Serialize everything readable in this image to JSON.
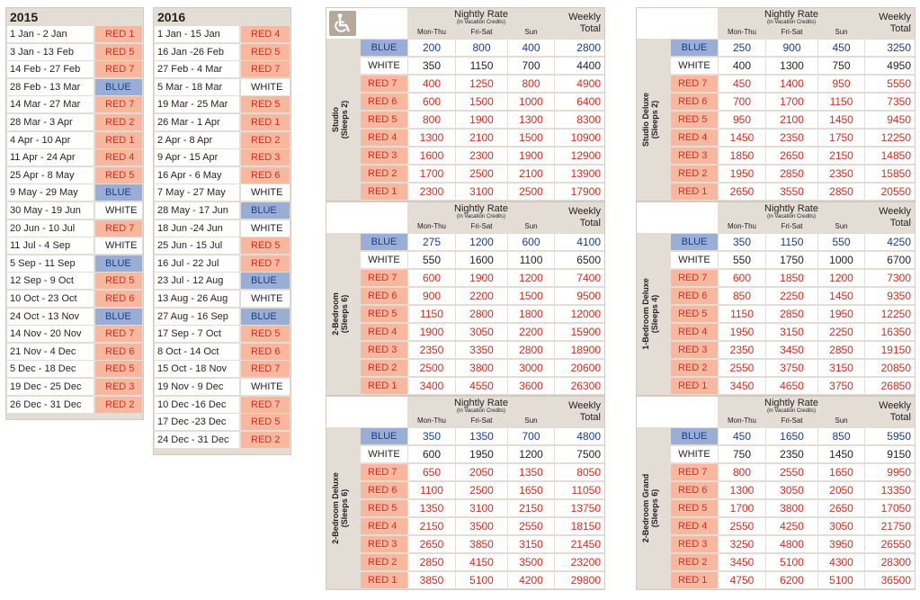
{
  "colors": {
    "frame": "#e3ddd5",
    "blue": "#9aaed3",
    "red": "#f6b9a0",
    "white": "#ffffff",
    "blue_text": "#1a3c8c",
    "red_text": "#d22e21",
    "icon_bg": "#b5a99b"
  },
  "calendars": [
    {
      "year": "2015",
      "rows": [
        {
          "date": "1 Jan - 2 Jan",
          "season": "RED 1"
        },
        {
          "date": "3 Jan - 13 Feb",
          "season": "RED 5"
        },
        {
          "date": "14 Feb - 27 Feb",
          "season": "RED 7"
        },
        {
          "date": "28 Feb - 13 Mar",
          "season": "BLUE"
        },
        {
          "date": "14 Mar - 27 Mar",
          "season": "RED 7"
        },
        {
          "date": "28 Mar - 3 Apr",
          "season": "RED 2"
        },
        {
          "date": "4 Apr - 10 Apr",
          "season": "RED 1"
        },
        {
          "date": "11 Apr - 24 Apr",
          "season": "RED 4"
        },
        {
          "date": "25 Apr - 8 May",
          "season": "RED 5"
        },
        {
          "date": "9 May - 29 May",
          "season": "BLUE"
        },
        {
          "date": "30 May - 19 Jun",
          "season": "WHITE"
        },
        {
          "date": "20 Jun - 10 Jul",
          "season": "RED 7"
        },
        {
          "date": "11 Jul - 4 Sep",
          "season": "WHITE"
        },
        {
          "date": "5 Sep - 11 Sep",
          "season": "BLUE"
        },
        {
          "date": "12 Sep - 9 Oct",
          "season": "RED 5"
        },
        {
          "date": "10 Oct - 23 Oct",
          "season": "RED 6"
        },
        {
          "date": "24 Oct - 13 Nov",
          "season": "BLUE"
        },
        {
          "date": "14 Nov - 20 Nov",
          "season": "RED 7"
        },
        {
          "date": "21 Nov - 4 Dec",
          "season": "RED 6"
        },
        {
          "date": "5 Dec - 18 Dec",
          "season": "RED 5"
        },
        {
          "date": "19 Dec - 25 Dec",
          "season": "RED 3"
        },
        {
          "date": "26 Dec - 31 Dec",
          "season": "RED 2"
        }
      ]
    },
    {
      "year": "2016",
      "rows": [
        {
          "date": "1 Jan - 15 Jan",
          "season": "RED 4"
        },
        {
          "date": "16 Jan -26 Feb",
          "season": "RED 5"
        },
        {
          "date": "27 Feb - 4 Mar",
          "season": "RED 7"
        },
        {
          "date": "5 Mar - 18 Mar",
          "season": "WHITE"
        },
        {
          "date": "19 Mar - 25 Mar",
          "season": "RED 5"
        },
        {
          "date": "26 Mar - 1 Apr",
          "season": "RED 1"
        },
        {
          "date": "2 Apr - 8 Apr",
          "season": "RED 2"
        },
        {
          "date": "9 Apr - 15 Apr",
          "season": "RED 3"
        },
        {
          "date": "16 Apr - 6 May",
          "season": "RED 6"
        },
        {
          "date": "7 May - 27 May",
          "season": "WHITE"
        },
        {
          "date": "28 May - 17 Jun",
          "season": "BLUE"
        },
        {
          "date": "18 Jun -24 Jun",
          "season": "WHITE"
        },
        {
          "date": "25 Jun - 15 Jul",
          "season": "RED 5"
        },
        {
          "date": "16 Jul - 22 Jul",
          "season": "RED 7"
        },
        {
          "date": "23 Jul - 12 Aug",
          "season": "BLUE"
        },
        {
          "date": "13 Aug - 26 Aug",
          "season": "WHITE"
        },
        {
          "date": "27 Aug - 16 Sep",
          "season": "BLUE"
        },
        {
          "date": "17 Sep - 7 Oct",
          "season": "RED 5"
        },
        {
          "date": "8 Oct - 14 Oct",
          "season": "RED 6"
        },
        {
          "date": "15 Oct - 18 Nov",
          "season": "RED 7"
        },
        {
          "date": "19 Nov - 9 Dec",
          "season": "WHITE"
        },
        {
          "date": "10 Dec -16 Dec",
          "season": "RED 7"
        },
        {
          "date": "17 Dec -23 Dec",
          "season": "RED 5"
        },
        {
          "date": "24 Dec - 31 Dec",
          "season": "RED 2"
        }
      ]
    }
  ],
  "rate_header": {
    "nightly_rate": "Nightly Rate",
    "subtitle": "(in Vacation Credits)",
    "columns": [
      "Mon-Thu",
      "Fri-Sat",
      "Sun"
    ],
    "weekly_line1": "Weekly",
    "weekly_line2": "Total"
  },
  "accessibility_icon": "wheelchair-icon",
  "rate_tables": [
    {
      "unit_name": "Studio",
      "unit_sleeps": "(Sleeps 2)",
      "rows": [
        {
          "season": "BLUE",
          "mon_thu": "200",
          "fri_sat": "800",
          "sun": "400",
          "weekly": "2800"
        },
        {
          "season": "WHITE",
          "mon_thu": "350",
          "fri_sat": "1150",
          "sun": "700",
          "weekly": "4400"
        },
        {
          "season": "RED 7",
          "mon_thu": "400",
          "fri_sat": "1250",
          "sun": "800",
          "weekly": "4900"
        },
        {
          "season": "RED 6",
          "mon_thu": "600",
          "fri_sat": "1500",
          "sun": "1000",
          "weekly": "6400"
        },
        {
          "season": "RED 5",
          "mon_thu": "800",
          "fri_sat": "1900",
          "sun": "1300",
          "weekly": "8300"
        },
        {
          "season": "RED 4",
          "mon_thu": "1300",
          "fri_sat": "2100",
          "sun": "1500",
          "weekly": "10900"
        },
        {
          "season": "RED 3",
          "mon_thu": "1600",
          "fri_sat": "2300",
          "sun": "1900",
          "weekly": "12900"
        },
        {
          "season": "RED 2",
          "mon_thu": "1700",
          "fri_sat": "2500",
          "sun": "2100",
          "weekly": "13900"
        },
        {
          "season": "RED 1",
          "mon_thu": "2300",
          "fri_sat": "3100",
          "sun": "2500",
          "weekly": "17900"
        }
      ]
    },
    {
      "unit_name": "2-Bedroom",
      "unit_sleeps": "(Sleeps 6)",
      "rows": [
        {
          "season": "BLUE",
          "mon_thu": "275",
          "fri_sat": "1200",
          "sun": "600",
          "weekly": "4100"
        },
        {
          "season": "WHITE",
          "mon_thu": "550",
          "fri_sat": "1600",
          "sun": "1100",
          "weekly": "6500"
        },
        {
          "season": "RED 7",
          "mon_thu": "600",
          "fri_sat": "1900",
          "sun": "1200",
          "weekly": "7400"
        },
        {
          "season": "RED 6",
          "mon_thu": "900",
          "fri_sat": "2200",
          "sun": "1500",
          "weekly": "9500"
        },
        {
          "season": "RED 5",
          "mon_thu": "1150",
          "fri_sat": "2800",
          "sun": "1800",
          "weekly": "12000"
        },
        {
          "season": "RED 4",
          "mon_thu": "1900",
          "fri_sat": "3050",
          "sun": "2200",
          "weekly": "15900"
        },
        {
          "season": "RED 3",
          "mon_thu": "2350",
          "fri_sat": "3350",
          "sun": "2800",
          "weekly": "18900"
        },
        {
          "season": "RED 2",
          "mon_thu": "2500",
          "fri_sat": "3800",
          "sun": "3000",
          "weekly": "20600"
        },
        {
          "season": "RED 1",
          "mon_thu": "3400",
          "fri_sat": "4550",
          "sun": "3600",
          "weekly": "26300"
        }
      ]
    },
    {
      "unit_name": "2-Bedroom Deluxe",
      "unit_sleeps": "(Sleeps 6)",
      "rows": [
        {
          "season": "BLUE",
          "mon_thu": "350",
          "fri_sat": "1350",
          "sun": "700",
          "weekly": "4800"
        },
        {
          "season": "WHITE",
          "mon_thu": "600",
          "fri_sat": "1950",
          "sun": "1200",
          "weekly": "7500"
        },
        {
          "season": "RED 7",
          "mon_thu": "650",
          "fri_sat": "2050",
          "sun": "1350",
          "weekly": "8050"
        },
        {
          "season": "RED 6",
          "mon_thu": "1100",
          "fri_sat": "2500",
          "sun": "1650",
          "weekly": "11050"
        },
        {
          "season": "RED 5",
          "mon_thu": "1350",
          "fri_sat": "3100",
          "sun": "2150",
          "weekly": "13750"
        },
        {
          "season": "RED 4",
          "mon_thu": "2150",
          "fri_sat": "3500",
          "sun": "2550",
          "weekly": "18150"
        },
        {
          "season": "RED 3",
          "mon_thu": "2650",
          "fri_sat": "3850",
          "sun": "3150",
          "weekly": "21450"
        },
        {
          "season": "RED 2",
          "mon_thu": "2850",
          "fri_sat": "4150",
          "sun": "3500",
          "weekly": "23200"
        },
        {
          "season": "RED 1",
          "mon_thu": "3850",
          "fri_sat": "5100",
          "sun": "4200",
          "weekly": "29800"
        }
      ]
    },
    {
      "unit_name": "Studio Deluxe",
      "unit_sleeps": "(Sleeps 2)",
      "rows": [
        {
          "season": "BLUE",
          "mon_thu": "250",
          "fri_sat": "900",
          "sun": "450",
          "weekly": "3250"
        },
        {
          "season": "WHITE",
          "mon_thu": "400",
          "fri_sat": "1300",
          "sun": "750",
          "weekly": "4950"
        },
        {
          "season": "RED 7",
          "mon_thu": "450",
          "fri_sat": "1400",
          "sun": "950",
          "weekly": "5550"
        },
        {
          "season": "RED 6",
          "mon_thu": "700",
          "fri_sat": "1700",
          "sun": "1150",
          "weekly": "7350"
        },
        {
          "season": "RED 5",
          "mon_thu": "950",
          "fri_sat": "2100",
          "sun": "1450",
          "weekly": "9450"
        },
        {
          "season": "RED 4",
          "mon_thu": "1450",
          "fri_sat": "2350",
          "sun": "1750",
          "weekly": "12250"
        },
        {
          "season": "RED 3",
          "mon_thu": "1850",
          "fri_sat": "2650",
          "sun": "2150",
          "weekly": "14850"
        },
        {
          "season": "RED 2",
          "mon_thu": "1950",
          "fri_sat": "2850",
          "sun": "2350",
          "weekly": "15850"
        },
        {
          "season": "RED 1",
          "mon_thu": "2650",
          "fri_sat": "3550",
          "sun": "2850",
          "weekly": "20550"
        }
      ]
    },
    {
      "unit_name": "1-Bedroom Deluxe",
      "unit_sleeps": "(Sleeps 4)",
      "rows": [
        {
          "season": "BLUE",
          "mon_thu": "350",
          "fri_sat": "1150",
          "sun": "550",
          "weekly": "4250"
        },
        {
          "season": "WHITE",
          "mon_thu": "550",
          "fri_sat": "1750",
          "sun": "1000",
          "weekly": "6700"
        },
        {
          "season": "RED 7",
          "mon_thu": "600",
          "fri_sat": "1850",
          "sun": "1200",
          "weekly": "7300"
        },
        {
          "season": "RED 6",
          "mon_thu": "850",
          "fri_sat": "2250",
          "sun": "1450",
          "weekly": "9350"
        },
        {
          "season": "RED 5",
          "mon_thu": "1150",
          "fri_sat": "2850",
          "sun": "1950",
          "weekly": "12250"
        },
        {
          "season": "RED 4",
          "mon_thu": "1950",
          "fri_sat": "3150",
          "sun": "2250",
          "weekly": "16350"
        },
        {
          "season": "RED 3",
          "mon_thu": "2350",
          "fri_sat": "3450",
          "sun": "2850",
          "weekly": "19150"
        },
        {
          "season": "RED 2",
          "mon_thu": "2550",
          "fri_sat": "3750",
          "sun": "3150",
          "weekly": "20850"
        },
        {
          "season": "RED 1",
          "mon_thu": "3450",
          "fri_sat": "4650",
          "sun": "3750",
          "weekly": "26850"
        }
      ]
    },
    {
      "unit_name": "2-Bedroom Grand",
      "unit_sleeps": "(Sleeps 6)",
      "rows": [
        {
          "season": "BLUE",
          "mon_thu": "450",
          "fri_sat": "1650",
          "sun": "850",
          "weekly": "5950"
        },
        {
          "season": "WHITE",
          "mon_thu": "750",
          "fri_sat": "2350",
          "sun": "1450",
          "weekly": "9150"
        },
        {
          "season": "RED 7",
          "mon_thu": "800",
          "fri_sat": "2550",
          "sun": "1650",
          "weekly": "9950"
        },
        {
          "season": "RED 6",
          "mon_thu": "1300",
          "fri_sat": "3050",
          "sun": "2050",
          "weekly": "13350"
        },
        {
          "season": "RED 5",
          "mon_thu": "1700",
          "fri_sat": "3800",
          "sun": "2650",
          "weekly": "17050"
        },
        {
          "season": "RED 4",
          "mon_thu": "2550",
          "fri_sat": "4250",
          "sun": "3050",
          "weekly": "21750"
        },
        {
          "season": "RED 3",
          "mon_thu": "3250",
          "fri_sat": "4800",
          "sun": "3950",
          "weekly": "26550"
        },
        {
          "season": "RED 2",
          "mon_thu": "3450",
          "fri_sat": "5100",
          "sun": "4300",
          "weekly": "28300"
        },
        {
          "season": "RED 1",
          "mon_thu": "4750",
          "fri_sat": "6200",
          "sun": "5100",
          "weekly": "36500"
        }
      ]
    }
  ]
}
